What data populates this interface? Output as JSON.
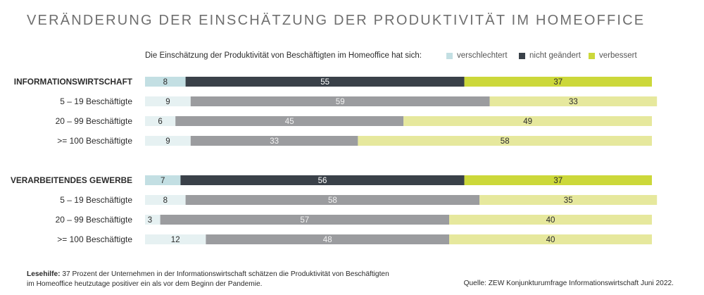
{
  "title": "VERÄNDERUNG DER EINSCHÄTZUNG DER PRODUKTIVITÄT IM HOMEOFFICE",
  "legend": {
    "lead": "Die Einschätzung der Produktivität von Beschäftigten im Homeoffice hat sich:",
    "items": [
      {
        "label": "verschlechtert",
        "color": "#c3dfe3"
      },
      {
        "label": "nicht geändert",
        "color": "#3a4149"
      },
      {
        "label": "verbessert",
        "color": "#ccd83a"
      }
    ]
  },
  "colors": {
    "total": {
      "verschlechtert": "#c3dfe3",
      "nicht geändert": "#3a4149",
      "verbessert": "#ccd83a"
    },
    "sub": {
      "verschlechtert": "#e6f1f2",
      "nicht geändert": "#9b9c9f",
      "verbessert": "#e6e89d"
    }
  },
  "chart_data": {
    "type": "bar",
    "orientation": "horizontal",
    "stacked": true,
    "categories": [
      "INFORMATIONSWIRTSCHAFT",
      "5 – 19 Beschäftigte",
      "20 – 99 Beschäftigte",
      ">= 100 Beschäftigte",
      "VERARBEITENDES GEWERBE",
      "5 – 19 Beschäftigte",
      "20 – 99 Beschäftigte",
      ">= 100 Beschäftigte"
    ],
    "category_kind": [
      "total",
      "sub",
      "sub",
      "sub",
      "total",
      "sub",
      "sub",
      "sub"
    ],
    "groups": [
      {
        "name": "INFORMATIONSWIRTSCHAFT",
        "rows": [
          0,
          1,
          2,
          3
        ]
      },
      {
        "name": "VERARBEITENDES GEWERBE",
        "rows": [
          4,
          5,
          6,
          7
        ]
      }
    ],
    "series": [
      {
        "name": "verschlechtert",
        "values": [
          8,
          9,
          6,
          9,
          7,
          8,
          3,
          12
        ]
      },
      {
        "name": "nicht geändert",
        "values": [
          55,
          59,
          45,
          33,
          56,
          58,
          57,
          48
        ]
      },
      {
        "name": "verbessert",
        "values": [
          37,
          33,
          49,
          58,
          37,
          35,
          40,
          40
        ]
      }
    ],
    "xlim": [
      0,
      100
    ],
    "data_labels": true,
    "grid": false
  },
  "footer": {
    "note_label": "Lesehilfe:",
    "note_text": " 37 Prozent der Unternehmen in der Informationswirtschaft schätzen die Produktivität von Beschäftigten im Homeoffice heutzutage positiver ein als vor dem Beginn der Pandemie.",
    "source": "Quelle: ZEW Konjunkturumfrage Informationswirtschaft Juni 2022."
  }
}
